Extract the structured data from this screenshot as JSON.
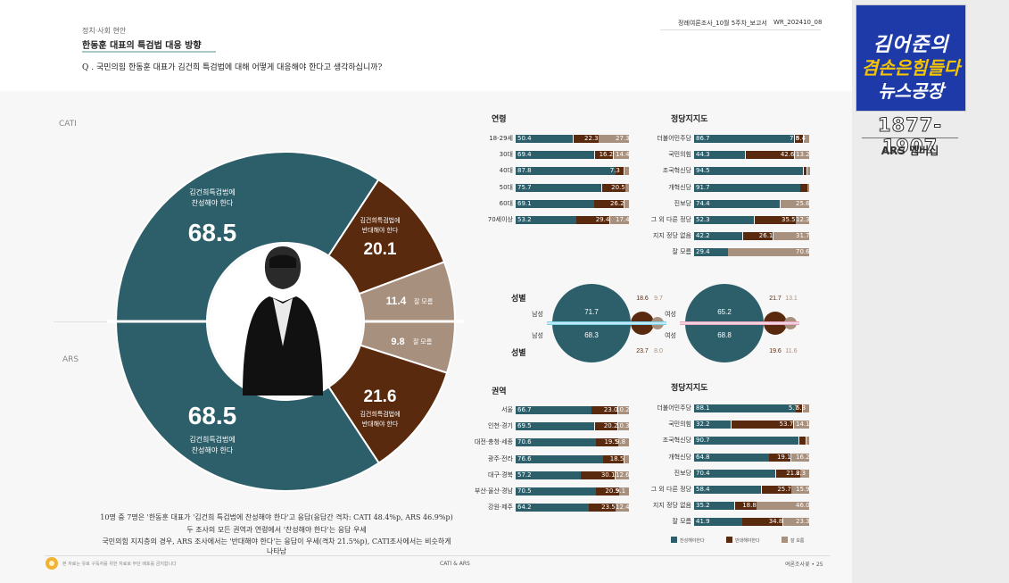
{
  "header": {
    "category": "정치·사회 현안",
    "topic": "한동훈 대표의 특검법 대응 방향",
    "report": "정례여론조사_10월 5주차_보고서",
    "report_code": "WR_202410_08",
    "question": "Q . 국민의힘 한동훈 대표가 김건희 특검법에 대해 어떻게 대응해야 한다고 생각하십니까?"
  },
  "sidebar": {
    "brand_l1": "김어준의",
    "brand_l2": "겸손은힘들다",
    "brand_l3": "뉴스공장",
    "phone": "1877-1907",
    "lab": "ARS 멤버십"
  },
  "colors": {
    "support": "#2d5f6b",
    "oppose": "#5a2a0e",
    "unknown": "#a8907f"
  },
  "labels": {
    "cati": "CATI",
    "ars": "ARS",
    "support": "김건희특검법에 찬성해야 한다",
    "oppose": "김건희특검법에 반대해야 한다",
    "unknown": "잘 모름",
    "gender": "성별",
    "male": "남성",
    "female": "여성",
    "age": "연령",
    "party": "정당지지도",
    "region": "권역"
  },
  "chart_data": [
    {
      "type": "pie",
      "name": "CATI",
      "categories": [
        "김건희특검법에 찬성해야 한다",
        "김건희특검법에 반대해야 한다",
        "잘 모름"
      ],
      "values": [
        68.5,
        20.1,
        11.4
      ]
    },
    {
      "type": "pie",
      "name": "ARS",
      "categories": [
        "김건희특검법에 찬성해야 한다",
        "김건희특검법에 반대해야 한다",
        "잘 모름"
      ],
      "values": [
        68.5,
        21.6,
        9.8
      ]
    },
    {
      "type": "bar",
      "title": "연령",
      "categories": [
        "18-29세",
        "30대",
        "40대",
        "50대",
        "60대",
        "70세이상"
      ],
      "series": [
        {
          "values": [
            50.4,
            69.4,
            87.8,
            75.7,
            69.1,
            53.2
          ]
        },
        {
          "values": [
            22.3,
            16.2,
            7.3,
            20.5,
            26.2,
            29.4
          ]
        },
        {
          "values": [
            27.3,
            14.4,
            4.9,
            3.8,
            4.7,
            17.4
          ]
        }
      ],
      "labels_shown": [
        [
          50.4,
          22.3,
          27.3
        ],
        [
          69.4,
          16.2,
          14.4
        ],
        [
          87.8,
          7.3,
          ""
        ],
        [
          75.7,
          20.5,
          ""
        ],
        [
          69.1,
          26.2,
          ""
        ],
        [
          53.2,
          29.4,
          17.4
        ]
      ]
    },
    {
      "type": "bar",
      "title": "정당지지도",
      "categories": [
        "더불어민주당",
        "국민의힘",
        "조국혁신당",
        "개혁신당",
        "진보당",
        "그 외 다른 정당",
        "지지 정당 없음",
        "잘 모름"
      ],
      "series": [
        {
          "values": [
            86.7,
            44.3,
            94.5,
            91.7,
            74.4,
            52.3,
            42.2,
            29.4
          ]
        },
        {
          "values": [
            7.8,
            42.6,
            3.0,
            6.0,
            0.0,
            35.5,
            26.1,
            0.0
          ]
        },
        {
          "values": [
            5.4,
            13.2,
            2.5,
            2.3,
            25.6,
            12.3,
            31.7,
            70.6
          ]
        }
      ],
      "labels_shown": [
        [
          86.7,
          7.8,
          5.4
        ],
        [
          44.3,
          42.6,
          13.2
        ],
        [
          94.5,
          "",
          ""
        ],
        [
          91.7,
          "",
          ""
        ],
        [
          74.4,
          "",
          25.6
        ],
        [
          52.3,
          35.5,
          12.3
        ],
        [
          42.2,
          26.1,
          31.7
        ],
        [
          29.4,
          "",
          70.6
        ]
      ]
    },
    {
      "type": "bubble",
      "title": "성별",
      "groups": [
        {
          "name": "남성",
          "cati": [
            71.7,
            18.6,
            9.7
          ],
          "ars": [
            68.3,
            23.7,
            8.0
          ]
        },
        {
          "name": "여성",
          "cati": [
            65.2,
            21.7,
            13.1
          ],
          "ars": [
            68.8,
            19.6,
            11.6
          ]
        }
      ]
    },
    {
      "type": "bar",
      "title": "권역",
      "categories": [
        "서울",
        "인천·경기",
        "대전·충청·세종",
        "광주·전라",
        "대구·경북",
        "부산·울산·경남",
        "강원·제주"
      ],
      "series": [
        {
          "values": [
            66.7,
            69.5,
            70.6,
            76.6,
            57.2,
            70.5,
            64.2
          ]
        },
        {
          "values": [
            23.0,
            20.2,
            19.5,
            18.5,
            30.1,
            20.5,
            23.5
          ]
        },
        {
          "values": [
            10.2,
            10.3,
            9.8,
            4.9,
            12.6,
            9.1,
            12.4
          ]
        }
      ],
      "labels_shown": [
        [
          66.7,
          23.0,
          10.2
        ],
        [
          69.5,
          20.2,
          10.3
        ],
        [
          70.6,
          19.5,
          9.8
        ],
        [
          76.6,
          18.5,
          ""
        ],
        [
          57.2,
          30.1,
          12.6
        ],
        [
          70.5,
          20.5,
          9.1
        ],
        [
          64.2,
          23.5,
          12.4
        ]
      ]
    },
    {
      "type": "bar",
      "title": "정당지지도",
      "categories": [
        "더불어민주당",
        "국민의힘",
        "조국혁신당",
        "개혁신당",
        "진보당",
        "그 외 다른 정당",
        "지지 정당 없음",
        "잘 모름"
      ],
      "series": [
        {
          "values": [
            88.1,
            32.2,
            90.7,
            64.8,
            70.4,
            58.4,
            35.2,
            41.9
          ]
        },
        {
          "values": [
            5.7,
            53.7,
            6.0,
            19.1,
            21.2,
            25.7,
            18.8,
            34.8
          ]
        },
        {
          "values": [
            6.3,
            14.1,
            3.3,
            16.2,
            8.3,
            15.9,
            46.0,
            23.3
          ]
        }
      ],
      "labels_shown": [
        [
          88.1,
          5.7,
          6.3
        ],
        [
          32.2,
          53.7,
          14.1
        ],
        [
          90.7,
          "",
          ""
        ],
        [
          64.8,
          19.1,
          16.2
        ],
        [
          70.4,
          21.2,
          8.3
        ],
        [
          58.4,
          25.7,
          15.9
        ],
        [
          35.2,
          18.8,
          46.0
        ],
        [
          41.9,
          34.8,
          23.3
        ]
      ]
    }
  ],
  "legend": [
    "찬성해야한다",
    "반대해야한다",
    "잘 모름"
  ],
  "notes": [
    "10명 중 7명은 '한동훈 대표가 '김건희 특검법에 찬성해야 한다'고 응답(응답간 격차: CATI 48.4%p, ARS 46.9%p)",
    "두 조사의 모든 권역과 연령에서 '찬성해야 한다'는 응답 우세",
    "국민의힘 지지층의 경우, ARS 조사에서는 '반대해야 한다'는 응답이 우세(격차 21.5%p), CATI조사에서는 비슷하게 나타남"
  ],
  "footer": {
    "left": "본 자료는 유료 구독자를 위한 자료로 무단 배포를 금지합니다",
    "center": "CATI & ARS",
    "right": "여론조사꽃 • 25"
  }
}
